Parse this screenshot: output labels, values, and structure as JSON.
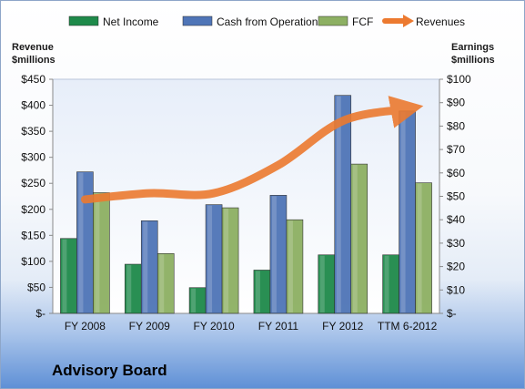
{
  "chart_data": {
    "type": "bar",
    "categories": [
      "FY 2008",
      "FY 2009",
      "FY 2010",
      "FY 2011",
      "FY 2012",
      "TTM 6-2012"
    ],
    "series": [
      {
        "name": "Net Income",
        "axis": "right",
        "values": [
          32,
          21,
          11,
          18.5,
          25,
          25
        ],
        "color": "#1e8a4a"
      },
      {
        "name": "Cash from Operations",
        "axis": "left",
        "values": [
          272,
          178,
          209,
          227,
          419,
          389
        ],
        "color": "#4f75b7"
      },
      {
        "name": "FCF",
        "axis": "left",
        "values": [
          232,
          115,
          203,
          180,
          287,
          251
        ],
        "color": "#8db063"
      }
    ],
    "line_series": {
      "name": "Revenues",
      "axis": "left",
      "values": [
        219,
        231,
        231,
        285,
        370,
        393
      ],
      "color": "#ec7a30"
    },
    "y_left": {
      "label": "Revenue\n$millions",
      "ylim": [
        0,
        450
      ],
      "ticks": [
        "$-",
        "$50",
        "$100",
        "$150",
        "$200",
        "$250",
        "$300",
        "$350",
        "$400",
        "$450"
      ]
    },
    "y_right": {
      "label": "Earnings\n$millions",
      "ylim": [
        0,
        100
      ],
      "ticks": [
        "$-",
        "$10",
        "$20",
        "$30",
        "$40",
        "$50",
        "$60",
        "$70",
        "$80",
        "$90",
        "$100"
      ]
    },
    "legend_position": "top",
    "grid": false,
    "caption": "Advisory Board"
  }
}
